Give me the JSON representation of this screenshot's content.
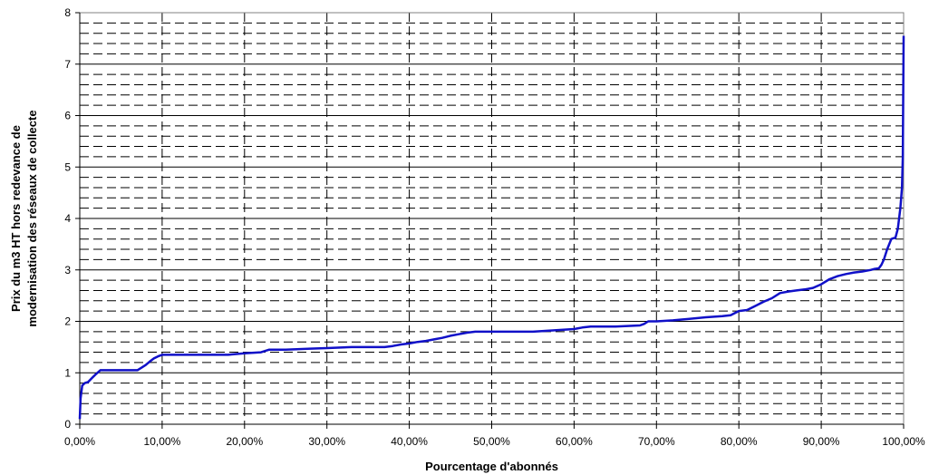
{
  "chart_data": {
    "type": "line",
    "title": "",
    "xlabel": "Pourcentage d'abonnés",
    "ylabel_line1": "Prix du m3 HT hors redevance de",
    "ylabel_line2": "modernisation des réseaux de collecte",
    "xlim": [
      0,
      100
    ],
    "ylim": [
      0,
      8
    ],
    "x_ticks": [
      "0,00%",
      "10,00%",
      "20,00%",
      "30,00%",
      "40,00%",
      "50,00%",
      "60,00%",
      "70,00%",
      "80,00%",
      "90,00%",
      "100,00%"
    ],
    "y_ticks": [
      "0",
      "1",
      "2",
      "3",
      "4",
      "5",
      "6",
      "7",
      "8"
    ],
    "grid": true,
    "legend": "none",
    "colors": {
      "line": "#1010c8",
      "axis": "#000000",
      "grid": "#000000",
      "frame": "#808080"
    },
    "series": [
      {
        "x": [
          0,
          0.1,
          0.3,
          0.6,
          1.0,
          1.5,
          2.0,
          2.5,
          4.0,
          6.0,
          7.0,
          7.5,
          8.0,
          8.5,
          9.0,
          9.5,
          10.0,
          12.0,
          15.0,
          18.0,
          20.0,
          22.0,
          23.0,
          25.0,
          28.0,
          30.0,
          33.0,
          35.0,
          37.0,
          38.0,
          39.0,
          40.0,
          41.0,
          42.0,
          43.0,
          44.0,
          45.0,
          46.0,
          47.0,
          48.0,
          50.0,
          55.0,
          60.0,
          61.0,
          62.0,
          65.0,
          68.0,
          68.5,
          69.0,
          70.0,
          72.0,
          74.0,
          76.0,
          78.0,
          79.0,
          80.0,
          81.0,
          82.0,
          83.0,
          84.0,
          85.0,
          86.0,
          87.0,
          88.0,
          89.0,
          90.0,
          91.0,
          92.0,
          93.0,
          94.0,
          95.0,
          96.0,
          96.5,
          97.0,
          97.3,
          97.6,
          98.0,
          98.5,
          98.8,
          99.0,
          99.3,
          99.6,
          99.8,
          99.9,
          100.0
        ],
        "y": [
          0.1,
          0.5,
          0.75,
          0.8,
          0.82,
          0.9,
          0.98,
          1.05,
          1.05,
          1.05,
          1.05,
          1.1,
          1.15,
          1.22,
          1.28,
          1.32,
          1.35,
          1.35,
          1.35,
          1.35,
          1.38,
          1.4,
          1.45,
          1.45,
          1.47,
          1.48,
          1.5,
          1.5,
          1.5,
          1.52,
          1.55,
          1.57,
          1.6,
          1.62,
          1.65,
          1.68,
          1.72,
          1.75,
          1.78,
          1.8,
          1.8,
          1.8,
          1.85,
          1.88,
          1.9,
          1.9,
          1.92,
          1.95,
          2.0,
          2.0,
          2.02,
          2.05,
          2.08,
          2.1,
          2.12,
          2.2,
          2.22,
          2.3,
          2.38,
          2.45,
          2.55,
          2.58,
          2.6,
          2.62,
          2.65,
          2.72,
          2.82,
          2.88,
          2.92,
          2.95,
          2.97,
          3.0,
          3.02,
          3.03,
          3.1,
          3.2,
          3.4,
          3.6,
          3.62,
          3.62,
          3.8,
          4.2,
          4.6,
          5.2,
          7.55
        ]
      }
    ]
  }
}
